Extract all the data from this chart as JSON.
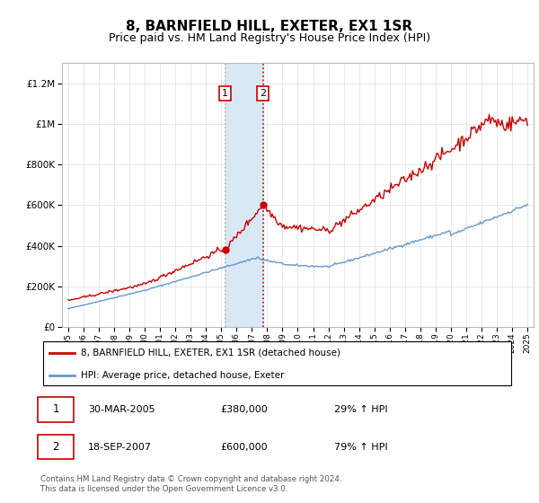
{
  "title": "8, BARNFIELD HILL, EXETER, EX1 1SR",
  "subtitle": "Price paid vs. HM Land Registry's House Price Index (HPI)",
  "legend_label_red": "8, BARNFIELD HILL, EXETER, EX1 1SR (detached house)",
  "legend_label_blue": "HPI: Average price, detached house, Exeter",
  "annotation1_date": "30-MAR-2005",
  "annotation1_price": "£380,000",
  "annotation1_hpi": "29% ↑ HPI",
  "annotation2_date": "18-SEP-2007",
  "annotation2_price": "£600,000",
  "annotation2_hpi": "79% ↑ HPI",
  "footer": "Contains HM Land Registry data © Crown copyright and database right 2024.\nThis data is licensed under the Open Government Licence v3.0.",
  "red_color": "#cc0000",
  "blue_color": "#6699cc",
  "highlight_color": "#d8e8f5",
  "annotation_box_color": "#cc0000",
  "ylim_max": 1300000,
  "purchase1_year": 2005.25,
  "purchase1_value": 380000,
  "purchase2_year": 2007.72,
  "purchase2_value": 600000,
  "title_fontsize": 11,
  "subtitle_fontsize": 9
}
